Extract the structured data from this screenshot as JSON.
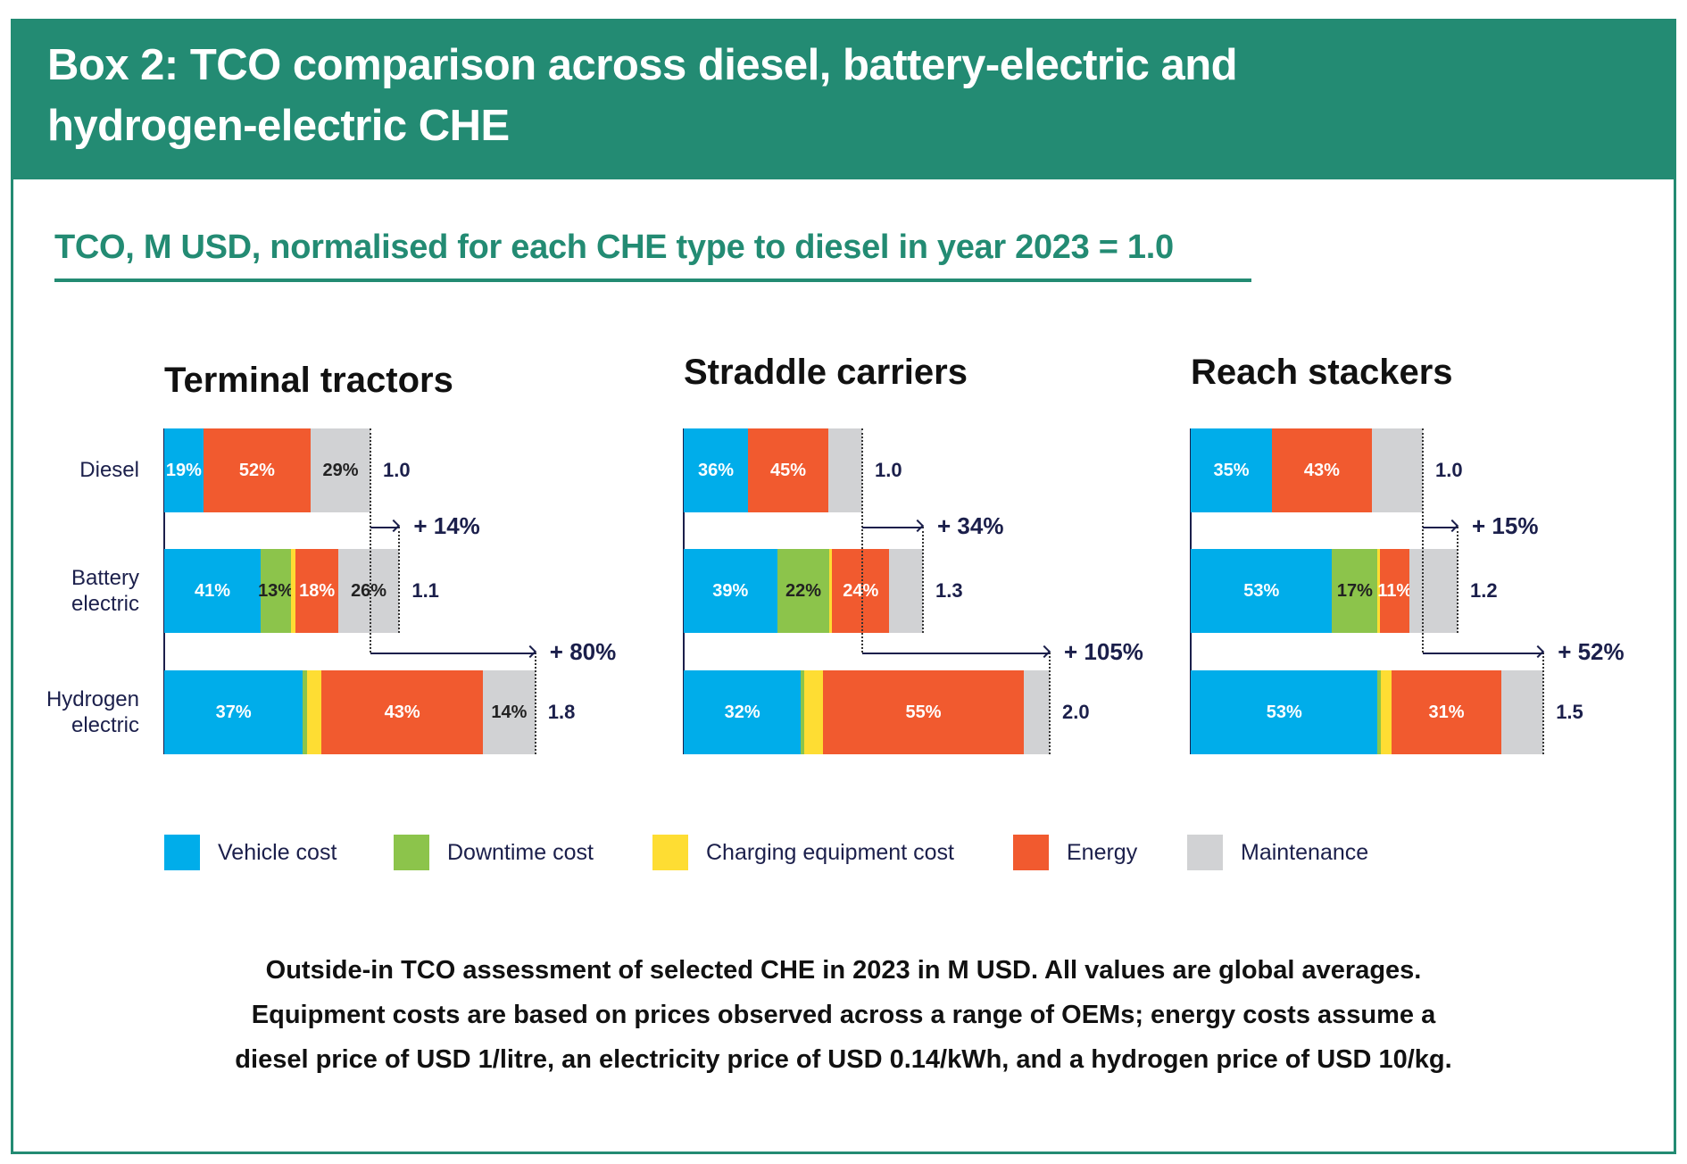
{
  "header": {
    "title": "Box 2: TCO comparison across diesel, battery-electric and hydrogen-electric CHE"
  },
  "subtitle": "TCO, M USD, normalised for each CHE type to diesel in year 2023 = 1.0",
  "colors": {
    "brand": "#238b73",
    "text_navy": "#1b1f4b"
  },
  "legend": [
    {
      "label": "Vehicle cost",
      "color": "#00adea"
    },
    {
      "label": "Downtime cost",
      "color": "#8cc44b"
    },
    {
      "label": "Charging equipment cost",
      "color": "#fedd33"
    },
    {
      "label": "Energy",
      "color": "#f15a2f"
    },
    {
      "label": "Maintenance",
      "color": "#d1d2d4"
    }
  ],
  "chart_data": [
    {
      "type": "bar",
      "orientation": "horizontal",
      "stacked": true,
      "title": "Terminal tractors",
      "categories": [
        "Diesel",
        "Battery electric",
        "Hydrogen electric"
      ],
      "rows": [
        {
          "total_label": "1.0",
          "increase_pct": 0,
          "increase_label": "",
          "shares": [
            19,
            0,
            0,
            52,
            29
          ],
          "share_labels": [
            "19%",
            "",
            "",
            "52%",
            "29%"
          ]
        },
        {
          "total_label": "1.1",
          "increase_pct": 14,
          "increase_label": "+ 14%",
          "shares": [
            41,
            13,
            2,
            18,
            26
          ],
          "share_labels": [
            "41%",
            "13%",
            "",
            "18%",
            "26%"
          ]
        },
        {
          "total_label": "1.8",
          "increase_pct": 80,
          "increase_label": "+ 80%",
          "shares": [
            37,
            1,
            4,
            43,
            14
          ],
          "share_labels": [
            "37%",
            "",
            "",
            "43%",
            "14%"
          ]
        }
      ]
    },
    {
      "type": "bar",
      "orientation": "horizontal",
      "stacked": true,
      "title": "Straddle carriers",
      "categories": [
        "Diesel",
        "Battery electric",
        "Hydrogen electric"
      ],
      "rows": [
        {
          "total_label": "1.0",
          "increase_pct": 0,
          "increase_label": "",
          "shares": [
            36,
            0,
            0,
            45,
            19
          ],
          "share_labels": [
            "36%",
            "",
            "",
            "45%",
            ""
          ]
        },
        {
          "total_label": "1.3",
          "increase_pct": 34,
          "increase_label": "+ 34%",
          "shares": [
            39,
            22,
            1,
            24,
            14
          ],
          "share_labels": [
            "39%",
            "22%",
            "",
            "24%",
            ""
          ]
        },
        {
          "total_label": "2.0",
          "increase_pct": 105,
          "increase_label": "+ 105%",
          "shares": [
            32,
            1,
            5,
            55,
            7
          ],
          "share_labels": [
            "32%",
            "",
            "",
            "55%",
            ""
          ]
        }
      ]
    },
    {
      "type": "bar",
      "orientation": "horizontal",
      "stacked": true,
      "title": "Reach stackers",
      "categories": [
        "Diesel",
        "Battery electric",
        "Hydrogen electric"
      ],
      "rows": [
        {
          "total_label": "1.0",
          "increase_pct": 0,
          "increase_label": "",
          "shares": [
            35,
            0,
            0,
            43,
            22
          ],
          "share_labels": [
            "35%",
            "",
            "",
            "43%",
            ""
          ]
        },
        {
          "total_label": "1.2",
          "increase_pct": 15,
          "increase_label": "+ 15%",
          "shares": [
            53,
            17,
            1,
            11,
            18
          ],
          "share_labels": [
            "53%",
            "17%",
            "",
            "11%",
            ""
          ]
        },
        {
          "total_label": "1.5",
          "increase_pct": 52,
          "increase_label": "+ 52%",
          "shares": [
            53,
            1,
            3,
            31,
            12
          ],
          "share_labels": [
            "53%",
            "",
            "",
            "31%",
            ""
          ]
        }
      ]
    }
  ],
  "caption": [
    "Outside-in TCO assessment of selected CHE in 2023 in M USD. All values are global averages.",
    "Equipment costs are based on prices observed across a range of OEMs; energy costs assume a",
    "diesel price of USD 1/litre, an electricity price of USD 0.14/kWh, and a hydrogen price of USD 10/kg."
  ]
}
